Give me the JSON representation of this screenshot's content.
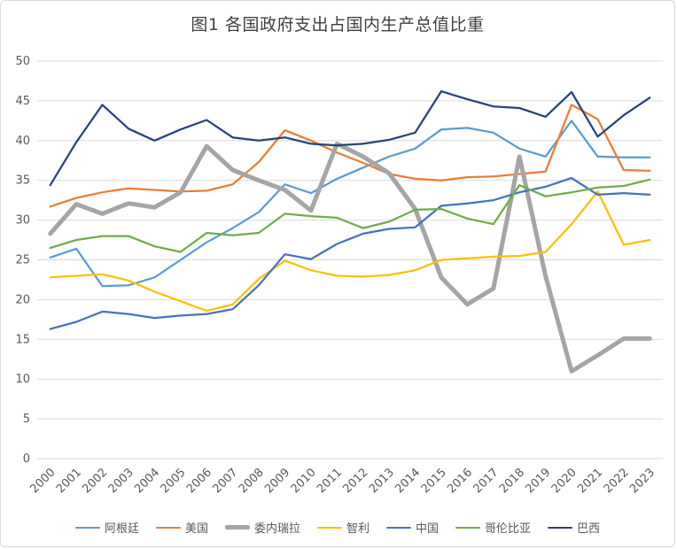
{
  "chart_data": {
    "type": "line",
    "title": "图1 各国政府支出占国内生产总值比重",
    "xlabel": "",
    "ylabel": "",
    "ylim": [
      0,
      50
    ],
    "ytick_step": 5,
    "grid": true,
    "legend_position": "bottom",
    "x_label_rotation": -45,
    "axis_text_color": "#595959",
    "gridline_color": "#d9d9d9",
    "years": [
      "2000",
      "2001",
      "2002",
      "2003",
      "2004",
      "2005",
      "2006",
      "2007",
      "2008",
      "2009",
      "2010",
      "2011",
      "2012",
      "2013",
      "2014",
      "2015",
      "2016",
      "2017",
      "2018",
      "2019",
      "2020",
      "2021",
      "2022",
      "2023"
    ],
    "series": [
      {
        "key": "argentina",
        "name": "阿根廷",
        "color": "#5B9BD5",
        "stroke_width": 2.25,
        "values": [
          25.3,
          26.4,
          21.7,
          21.8,
          22.8,
          25.0,
          27.2,
          29.0,
          31.0,
          34.5,
          33.4,
          35.2,
          36.6,
          38.0,
          39.0,
          41.4,
          41.6,
          41.0,
          39.0,
          38.0,
          42.5,
          38.0,
          37.9,
          37.9
        ]
      },
      {
        "key": "usa",
        "name": "美国",
        "color": "#ED7D31",
        "stroke_width": 2.25,
        "values": [
          31.7,
          32.8,
          33.5,
          34.0,
          33.8,
          33.6,
          33.7,
          34.5,
          37.3,
          41.3,
          40.0,
          38.5,
          37.2,
          35.8,
          35.2,
          35.0,
          35.4,
          35.5,
          35.8,
          36.1,
          44.5,
          42.7,
          36.3,
          36.2
        ]
      },
      {
        "key": "venezuela",
        "name": "委内瑞拉",
        "color": "#A5A5A5",
        "stroke_width": 5,
        "values": [
          28.3,
          32.0,
          30.8,
          32.1,
          31.6,
          33.5,
          39.3,
          36.3,
          35.0,
          33.8,
          31.2,
          39.6,
          38.0,
          35.9,
          31.4,
          22.8,
          19.4,
          21.4,
          38.0,
          23.0,
          11.0,
          13.0,
          15.1,
          15.1
        ]
      },
      {
        "key": "chile",
        "name": "智利",
        "color": "#FFC000",
        "stroke_width": 2.25,
        "values": [
          22.8,
          23.0,
          23.2,
          22.4,
          21.0,
          19.8,
          18.6,
          19.4,
          22.6,
          24.9,
          23.7,
          23.0,
          22.9,
          23.1,
          23.7,
          25.0,
          25.2,
          25.4,
          25.5,
          26.0,
          29.5,
          33.6,
          26.9,
          27.5
        ]
      },
      {
        "key": "china",
        "name": "中国",
        "color": "#4472C4",
        "stroke_width": 2.25,
        "values": [
          16.3,
          17.2,
          18.5,
          18.2,
          17.7,
          18.0,
          18.2,
          18.8,
          21.8,
          25.7,
          25.1,
          27.0,
          28.3,
          28.9,
          29.1,
          31.8,
          32.1,
          32.5,
          33.5,
          34.2,
          35.3,
          33.2,
          33.4,
          33.2
        ]
      },
      {
        "key": "colombia",
        "name": "哥伦比亚",
        "color": "#70AD47",
        "stroke_width": 2.25,
        "values": [
          26.5,
          27.5,
          28.0,
          28.0,
          26.7,
          26.0,
          28.4,
          28.1,
          28.4,
          30.8,
          30.5,
          30.3,
          29.0,
          29.8,
          31.3,
          31.4,
          30.2,
          29.5,
          34.4,
          33.0,
          33.5,
          34.1,
          34.3,
          35.1
        ]
      },
      {
        "key": "brazil",
        "name": "巴西",
        "color": "#264478",
        "stroke_width": 2.25,
        "values": [
          34.4,
          39.8,
          44.5,
          41.5,
          40.0,
          41.4,
          42.6,
          40.4,
          40.0,
          40.4,
          39.6,
          39.4,
          39.6,
          40.1,
          41.0,
          46.2,
          45.2,
          44.3,
          44.1,
          43.0,
          46.1,
          40.5,
          43.2,
          45.4
        ]
      }
    ]
  }
}
